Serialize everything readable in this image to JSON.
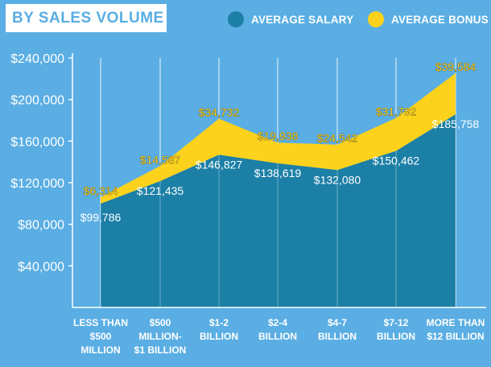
{
  "title": "BY SALES VOLUME",
  "colors": {
    "background": "#5aaee3",
    "salary": "#1c7fa6",
    "bonus": "#fcd21c",
    "text": "#ffffff",
    "bonus_label": "#fcd21c"
  },
  "chart_data": {
    "type": "area",
    "title": "BY SALES VOLUME",
    "categories": [
      [
        "LESS THAN",
        "$500",
        "MILLION"
      ],
      [
        "$500",
        "MILLION-",
        "$1 BILLION"
      ],
      [
        "$1-2",
        "BILLION"
      ],
      [
        "$2-4",
        "BILLION"
      ],
      [
        "$4-7",
        "BILLION"
      ],
      [
        "$7-12",
        "BILLION"
      ],
      [
        "MORE THAN",
        "$12 BILLION"
      ]
    ],
    "series": [
      {
        "name": "AVERAGE SALARY",
        "values": [
          99786,
          121435,
          146827,
          138619,
          132080,
          150462,
          185758
        ],
        "labels": [
          "$99,786",
          "$121,435",
          "$146,827",
          "$138,619",
          "$132,080",
          "$150,462",
          "$185,758"
        ]
      },
      {
        "name": "AVERAGE BONUS",
        "values": [
          6314,
          14587,
          34732,
          19938,
          24542,
          31792,
          39584
        ],
        "labels": [
          "$6,314",
          "$14,587",
          "$34,732",
          "$19,938",
          "$24,542",
          "$31,792",
          "$39,584"
        ]
      }
    ],
    "stacked": true,
    "ylim": [
      0,
      240000
    ],
    "yticks": [
      40000,
      80000,
      120000,
      160000,
      200000,
      240000
    ],
    "ytick_labels": [
      "$40,000",
      "$80,000",
      "$120,000",
      "$160,000",
      "$200,000",
      "$240,000"
    ],
    "legend": "top-right",
    "grid": "vertical"
  }
}
